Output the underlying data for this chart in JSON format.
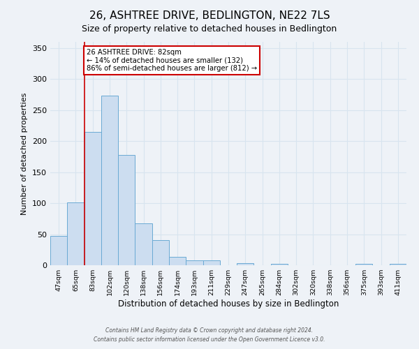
{
  "title": "26, ASHTREE DRIVE, BEDLINGTON, NE22 7LS",
  "subtitle": "Size of property relative to detached houses in Bedlington",
  "xlabel": "Distribution of detached houses by size in Bedlington",
  "ylabel": "Number of detached properties",
  "bin_labels": [
    "47sqm",
    "65sqm",
    "83sqm",
    "102sqm",
    "120sqm",
    "138sqm",
    "156sqm",
    "174sqm",
    "193sqm",
    "211sqm",
    "229sqm",
    "247sqm",
    "265sqm",
    "284sqm",
    "302sqm",
    "320sqm",
    "338sqm",
    "356sqm",
    "375sqm",
    "393sqm",
    "411sqm"
  ],
  "bar_heights": [
    47,
    101,
    215,
    273,
    178,
    67,
    40,
    13,
    8,
    8,
    0,
    3,
    0,
    2,
    0,
    0,
    0,
    0,
    2,
    0,
    2
  ],
  "bar_color": "#ccddf0",
  "bar_edge_color": "#6aaad4",
  "ylim": [
    0,
    360
  ],
  "yticks": [
    0,
    50,
    100,
    150,
    200,
    250,
    300,
    350
  ],
  "vline_x": 2,
  "annotation_title": "26 ASHTREE DRIVE: 82sqm",
  "annotation_line1": "← 14% of detached houses are smaller (132)",
  "annotation_line2": "86% of semi-detached houses are larger (812) →",
  "vline_color": "#cc0000",
  "annotation_box_color": "#ffffff",
  "annotation_box_edge": "#cc0000",
  "footer1": "Contains HM Land Registry data © Crown copyright and database right 2024.",
  "footer2": "Contains public sector information licensed under the Open Government Licence v3.0.",
  "background_color": "#eef2f7",
  "grid_color": "#d8e4ef",
  "title_fontsize": 11,
  "subtitle_fontsize": 9
}
